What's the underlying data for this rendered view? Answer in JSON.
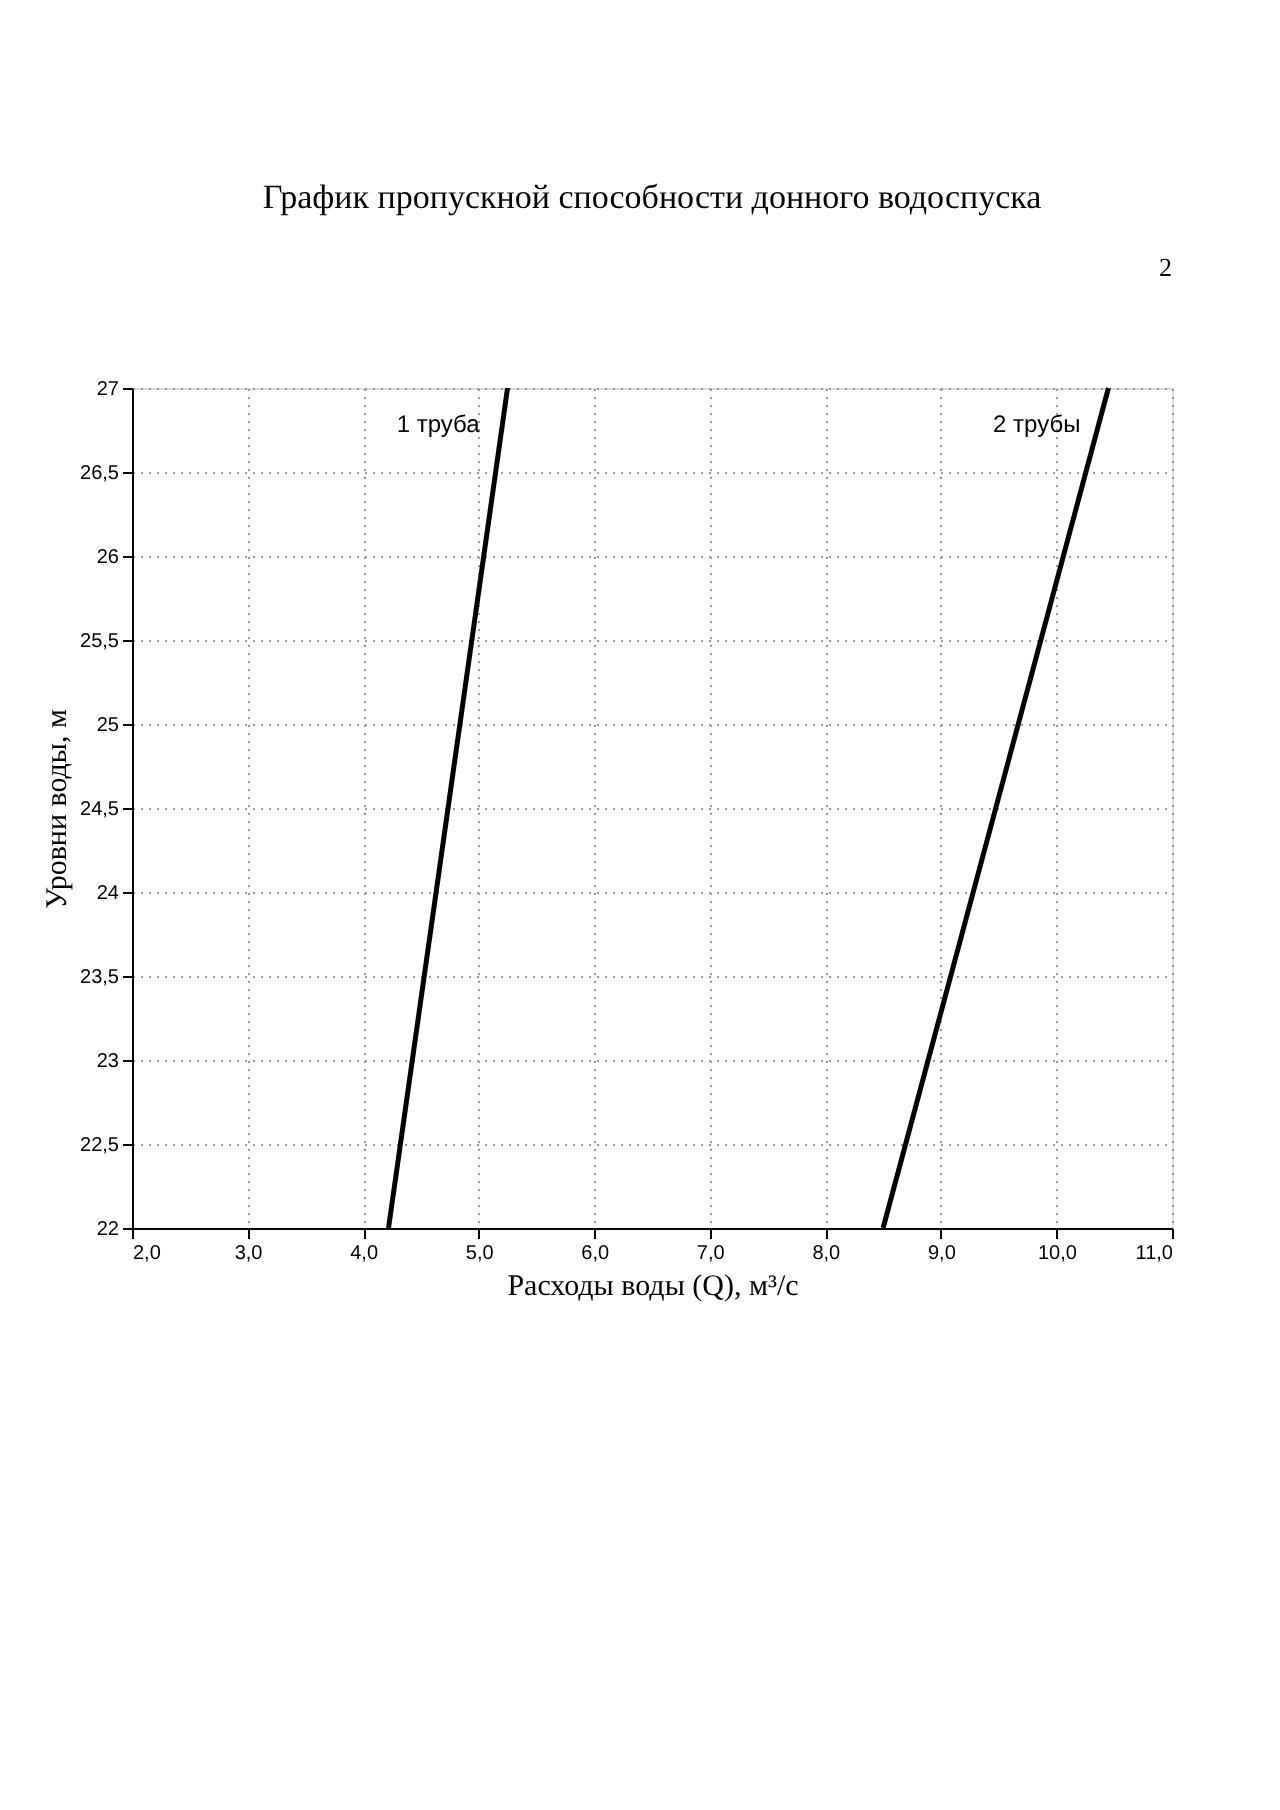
{
  "chart_data": {
    "type": "line",
    "title": "График пропускной способности донного водоспуска",
    "xlabel": "Расходы воды (Q), м³/с",
    "ylabel": "Уровни воды, м",
    "series": [
      {
        "name": "1 труба",
        "color": "#000000",
        "x": [
          4.22,
          5.25
        ],
        "values": [
          22,
          27
        ]
      },
      {
        "name": "2 трубы",
        "color": "#000000",
        "x": [
          8.5,
          10.45
        ],
        "values": [
          22,
          27
        ]
      }
    ],
    "xlim": [
      2,
      11
    ],
    "ylim": [
      22,
      27
    ],
    "xticks": [
      {
        "value": 2,
        "label": "2,0"
      },
      {
        "value": 3,
        "label": "3,0"
      },
      {
        "value": 4,
        "label": "4,0"
      },
      {
        "value": 5,
        "label": "5,0"
      },
      {
        "value": 6,
        "label": "6,0"
      },
      {
        "value": 7,
        "label": "7,0"
      },
      {
        "value": 8,
        "label": "8,0"
      },
      {
        "value": 9,
        "label": "9,0"
      },
      {
        "value": 10,
        "label": "10,0"
      },
      {
        "value": 11,
        "label": "11,0"
      }
    ],
    "yticks": [
      22,
      {
        "value": 22.5,
        "label": "22,5"
      },
      23,
      {
        "value": 23.5,
        "label": "23,5"
      },
      24,
      {
        "value": 24.5,
        "label": "24,5"
      },
      25,
      {
        "value": 25.5,
        "label": "25,5"
      },
      26,
      {
        "value": 26.5,
        "label": "26,5"
      },
      27
    ],
    "grid": true,
    "legend": false,
    "marker": "none",
    "line_style": "solid",
    "annotations": [
      "2"
    ]
  }
}
